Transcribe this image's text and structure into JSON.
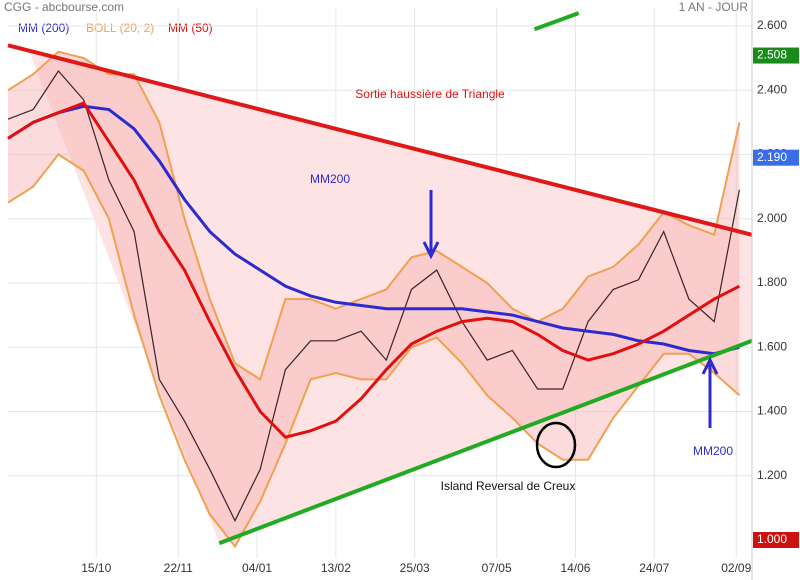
{
  "chart_data": {
    "type": "line",
    "title": "CGG - abcbourse.com",
    "period": "1 AN - JOUR",
    "x": [
      0,
      8,
      16,
      24,
      32,
      40,
      48,
      56,
      64,
      72,
      80,
      88,
      96,
      104,
      112,
      120,
      128,
      136,
      144,
      152,
      160,
      168,
      176,
      184,
      192,
      200,
      208,
      216,
      224,
      232
    ],
    "xlim": [
      0,
      236
    ],
    "xticks": [
      {
        "value": 28,
        "label": "15/10"
      },
      {
        "value": 54,
        "label": "22/11"
      },
      {
        "value": 79,
        "label": "04/01"
      },
      {
        "value": 104,
        "label": "13/02"
      },
      {
        "value": 129,
        "label": "25/03"
      },
      {
        "value": 155,
        "label": "07/05"
      },
      {
        "value": 180,
        "label": "14/06"
      },
      {
        "value": 205,
        "label": "24/07"
      },
      {
        "value": 231,
        "label": "02/09"
      }
    ],
    "ylim": [
      0.944,
      2.656
    ],
    "yticks": [
      {
        "value": 1.2,
        "label": "1.200"
      },
      {
        "value": 1.4,
        "label": "1.400"
      },
      {
        "value": 1.6,
        "label": "1.600"
      },
      {
        "value": 1.8,
        "label": "1.800"
      },
      {
        "value": 2.0,
        "label": "2.000"
      },
      {
        "value": 2.2,
        "label": "2.200"
      },
      {
        "value": 2.4,
        "label": "2.400"
      },
      {
        "value": 2.6,
        "label": "2.600"
      }
    ],
    "grid": true,
    "price": {
      "color": "#3a2424",
      "values": [
        2.31,
        2.34,
        2.46,
        2.37,
        2.12,
        1.96,
        1.5,
        1.37,
        1.22,
        1.06,
        1.22,
        1.53,
        1.62,
        1.62,
        1.65,
        1.56,
        1.78,
        1.84,
        1.68,
        1.56,
        1.59,
        1.47,
        1.47,
        1.68,
        1.78,
        1.81,
        1.96,
        1.75,
        1.68,
        2.09
      ]
    },
    "series": [
      {
        "name": "MM (200)",
        "color": "#2b2bd0",
        "values": [
          2.25,
          2.3,
          2.33,
          2.35,
          2.34,
          2.28,
          2.18,
          2.06,
          1.96,
          1.89,
          1.84,
          1.79,
          1.76,
          1.74,
          1.73,
          1.72,
          1.72,
          1.72,
          1.72,
          1.71,
          1.7,
          1.68,
          1.66,
          1.65,
          1.64,
          1.62,
          1.61,
          1.59,
          1.58,
          1.6
        ]
      },
      {
        "name": "MM (50)",
        "color": "#e01010",
        "values": [
          2.25,
          2.3,
          2.33,
          2.36,
          2.24,
          2.12,
          1.96,
          1.84,
          1.68,
          1.53,
          1.4,
          1.32,
          1.34,
          1.37,
          1.44,
          1.53,
          1.61,
          1.65,
          1.68,
          1.69,
          1.68,
          1.64,
          1.59,
          1.56,
          1.58,
          1.61,
          1.65,
          1.7,
          1.75,
          1.79
        ]
      }
    ],
    "bands": {
      "name": "BOLL (20, 2)",
      "color": "#f0a050",
      "upper": [
        2.4,
        2.45,
        2.52,
        2.5,
        2.45,
        2.45,
        2.3,
        2.0,
        1.75,
        1.55,
        1.5,
        1.75,
        1.75,
        1.72,
        1.75,
        1.78,
        1.88,
        1.9,
        1.85,
        1.8,
        1.72,
        1.68,
        1.72,
        1.82,
        1.85,
        1.92,
        2.02,
        1.98,
        1.95,
        2.3
      ],
      "lower": [
        2.05,
        2.1,
        2.2,
        2.15,
        2.0,
        1.7,
        1.45,
        1.25,
        1.08,
        0.98,
        1.12,
        1.3,
        1.5,
        1.52,
        1.5,
        1.5,
        1.6,
        1.63,
        1.55,
        1.45,
        1.38,
        1.3,
        1.25,
        1.25,
        1.38,
        1.48,
        1.58,
        1.58,
        1.52,
        1.45
      ]
    },
    "trendlines": [
      {
        "color": "#e01818",
        "x": [
          0,
          236
        ],
        "values": [
          2.54,
          1.95
        ]
      },
      {
        "color": "#22aa22",
        "x": [
          67,
          236
        ],
        "values": [
          0.99,
          1.62
        ]
      },
      {
        "color": "#22aa22",
        "x": [
          167,
          181
        ],
        "values": [
          2.59,
          2.64
        ]
      }
    ],
    "price_markers": [
      {
        "value": 2.508,
        "label": "2.508",
        "color": "#1a8a1a"
      },
      {
        "value": 2.19,
        "label": "2.190",
        "color": "#3a6ee8"
      },
      {
        "value": 1.0,
        "label": "1.000",
        "color": "#cc1111"
      }
    ],
    "annotations": [
      "Sortie haussière de Triangle",
      "MM200",
      "MM200",
      "Island Reversal de Creux"
    ]
  }
}
